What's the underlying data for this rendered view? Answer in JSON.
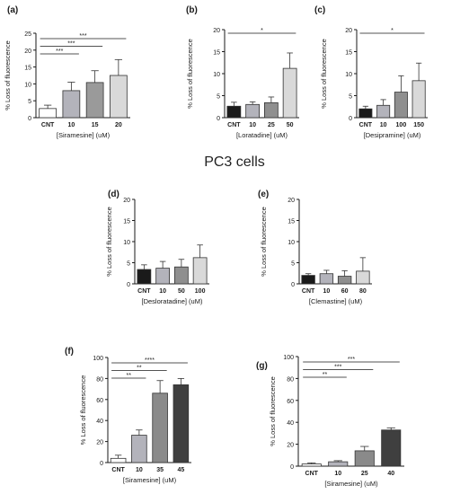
{
  "heading": "PC3 cells",
  "colors": {
    "axis": "#1a1a1a",
    "bar_edge": "#333333"
  },
  "chart_data": [
    {
      "type": "bar",
      "panel": "(a)",
      "categories": [
        "CNT",
        "10",
        "15",
        "20"
      ],
      "values": [
        2.7,
        8.0,
        10.4,
        12.5
      ],
      "errors": [
        1.0,
        2.5,
        3.5,
        4.7
      ],
      "colors": [
        "#ffffff",
        "#b3b3bb",
        "#9a9a9a",
        "#d9d9d9"
      ],
      "xlabel": "[Siramesine] (uM)",
      "ylabel": "% Loss of fluorescence",
      "ylim": [
        0,
        25
      ],
      "yticks": [
        0,
        5,
        10,
        15,
        20,
        25
      ],
      "significance": [
        {
          "from": 0,
          "to": 1,
          "label": "***"
        },
        {
          "from": 0,
          "to": 2,
          "label": "***"
        },
        {
          "from": 0,
          "to": 3,
          "label": "***"
        }
      ]
    },
    {
      "type": "bar",
      "panel": "(b)",
      "categories": [
        "CNT",
        "10",
        "25",
        "50"
      ],
      "values": [
        2.6,
        3.0,
        3.4,
        11.2
      ],
      "errors": [
        0.9,
        0.6,
        1.3,
        3.5
      ],
      "colors": [
        "#1a1a1a",
        "#b3b3bb",
        "#8f8f8f",
        "#d9d9d9"
      ],
      "xlabel": "[Loratadine] (uM)",
      "ylabel": "% Loss of fluorescence",
      "ylim": [
        0,
        20
      ],
      "yticks": [
        0,
        5,
        10,
        15,
        20
      ],
      "significance": [
        {
          "from": 0,
          "to": 3,
          "label": "*"
        }
      ]
    },
    {
      "type": "bar",
      "panel": "(c)",
      "categories": [
        "CNT",
        "10",
        "100",
        "150"
      ],
      "values": [
        2.0,
        2.8,
        5.8,
        8.4
      ],
      "errors": [
        0.6,
        1.3,
        3.7,
        4.0
      ],
      "colors": [
        "#1a1a1a",
        "#b3b3bb",
        "#8f8f8f",
        "#d9d9d9"
      ],
      "xlabel": "[Desipramine] (uM)",
      "ylabel": "% Loss of fluorescence",
      "ylim": [
        0,
        20
      ],
      "yticks": [
        0,
        5,
        10,
        15,
        20
      ],
      "significance": [
        {
          "from": 0,
          "to": 3,
          "label": "*"
        }
      ]
    },
    {
      "type": "bar",
      "panel": "(d)",
      "categories": [
        "CNT",
        "10",
        "50",
        "100"
      ],
      "values": [
        3.4,
        3.7,
        4.0,
        6.2
      ],
      "errors": [
        1.1,
        1.6,
        1.8,
        3.0
      ],
      "colors": [
        "#1a1a1a",
        "#b3b3bb",
        "#8f8f8f",
        "#d9d9d9"
      ],
      "xlabel": "[Desloratadine] (uM)",
      "ylabel": "% Loss of fluorescence",
      "ylim": [
        0,
        20
      ],
      "yticks": [
        0,
        5,
        10,
        15,
        20
      ],
      "significance": []
    },
    {
      "type": "bar",
      "panel": "(e)",
      "categories": [
        "CNT",
        "10",
        "60",
        "80"
      ],
      "values": [
        2.0,
        2.4,
        1.8,
        3.0
      ],
      "errors": [
        0.4,
        0.8,
        1.3,
        3.2
      ],
      "colors": [
        "#1a1a1a",
        "#b3b3bb",
        "#8f8f8f",
        "#d9d9d9"
      ],
      "xlabel": "[Clemastine] (uM)",
      "ylabel": "% Loss of fluorescence",
      "ylim": [
        0,
        20
      ],
      "yticks": [
        0,
        5,
        10,
        15,
        20
      ],
      "significance": []
    },
    {
      "type": "bar",
      "panel": "(f)",
      "categories": [
        "CNT",
        "10",
        "35",
        "45"
      ],
      "values": [
        4,
        26,
        66,
        74
      ],
      "errors": [
        3,
        5,
        12,
        6
      ],
      "colors": [
        "#ffffff",
        "#b3b3bb",
        "#8a8a8a",
        "#3f3f3f"
      ],
      "xlabel": "[Siramesine] (uM)",
      "ylabel": "% Loss of fluorescence",
      "ylim": [
        0,
        100
      ],
      "yticks": [
        0,
        20,
        40,
        60,
        80,
        100
      ],
      "significance": [
        {
          "from": 0,
          "to": 1,
          "label": "**"
        },
        {
          "from": 0,
          "to": 2,
          "label": "**"
        },
        {
          "from": 0,
          "to": 3,
          "label": "****"
        }
      ]
    },
    {
      "type": "bar",
      "panel": "(g)",
      "categories": [
        "CNT",
        "10",
        "25",
        "40"
      ],
      "values": [
        2,
        4,
        14,
        33
      ],
      "errors": [
        1,
        1,
        4,
        2
      ],
      "colors": [
        "#ffffff",
        "#b3b3bb",
        "#8a8a8a",
        "#3f3f3f"
      ],
      "xlabel": "[Siramesine] (uM)",
      "ylabel": "% Loss of fluorescence",
      "ylim": [
        0,
        100
      ],
      "yticks": [
        0,
        20,
        40,
        60,
        80,
        100
      ],
      "significance": [
        {
          "from": 0,
          "to": 1,
          "label": "**"
        },
        {
          "from": 0,
          "to": 2,
          "label": "***"
        },
        {
          "from": 0,
          "to": 3,
          "label": "***"
        }
      ]
    }
  ]
}
